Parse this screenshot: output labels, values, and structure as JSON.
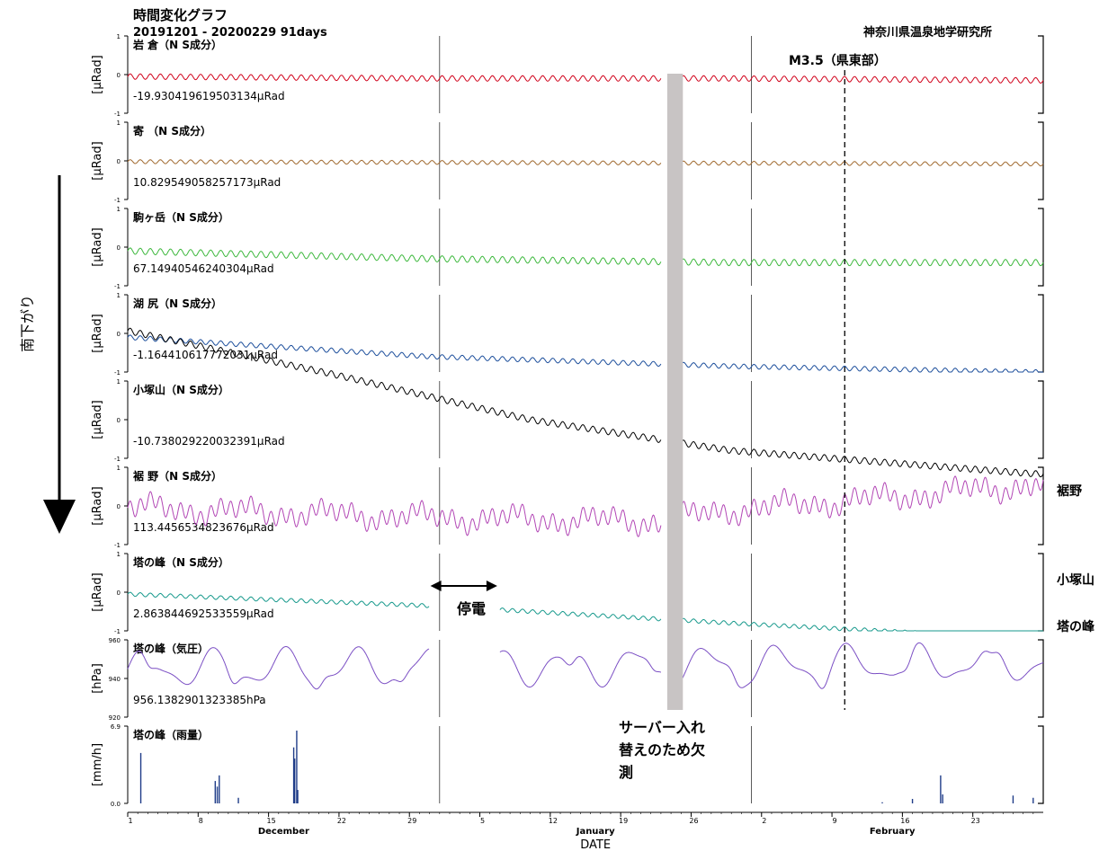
{
  "header": {
    "title": "時間変化グラフ",
    "range": "20191201 - 20200229 91days",
    "institute": "神奈川県温泉地学研究所"
  },
  "chart_data": {
    "type": "line",
    "title": "時間変化グラフ",
    "subtitle": "20191201 - 20200229 91days",
    "xlabel": "DATE",
    "x_range": [
      "2019-12-01",
      "2020-02-29"
    ],
    "month_labels": [
      "December",
      "January",
      "February"
    ],
    "x_ticks": {
      "2019-12": [
        "1",
        "8",
        "15",
        "22",
        "29"
      ],
      "2020-01": [
        "5",
        "12",
        "19",
        "26"
      ],
      "2020-02": [
        "2",
        "9",
        "16",
        "23"
      ]
    },
    "panels": [
      {
        "name": "岩 倉（N S成分）",
        "ylabel": "[μRad]",
        "ylim": [
          -1,
          1
        ],
        "yticks": [
          "1",
          "0",
          "-1"
        ],
        "color": "#d0021b",
        "offset_label": "-19.930419619503134μRad",
        "trend": [
          [
            0,
            -0.05
          ],
          [
            30,
            -0.1
          ],
          [
            60,
            -0.1
          ],
          [
            90,
            -0.15
          ]
        ],
        "amp": 0.07,
        "gaps": [
          [
            53,
            55
          ]
        ]
      },
      {
        "name": "寄 （N S成分）",
        "ylabel": "[μRad]",
        "ylim": [
          -1,
          1
        ],
        "yticks": [
          "1",
          "0",
          "-1"
        ],
        "color": "#a0692e",
        "offset_label": "10.829549058257173μRad",
        "trend": [
          [
            0,
            -0.02
          ],
          [
            90,
            -0.08
          ]
        ],
        "amp": 0.05,
        "gaps": [
          [
            53,
            55
          ]
        ]
      },
      {
        "name": "駒ヶ岳（N S成分）",
        "ylabel": "[μRad]",
        "ylim": [
          -1,
          1
        ],
        "yticks": [
          "1",
          "0",
          "-1"
        ],
        "color": "#3db83d",
        "offset_label": "67.14940546240304μRad",
        "trend": [
          [
            0,
            -0.1
          ],
          [
            30,
            -0.3
          ],
          [
            60,
            -0.4
          ],
          [
            90,
            -0.4
          ]
        ],
        "amp": 0.08,
        "gaps": [
          [
            53,
            55
          ]
        ]
      },
      {
        "name": "湖 尻（N S成分）",
        "ylabel": "[μRad]",
        "ylim": [
          -1,
          1
        ],
        "yticks": [
          "1",
          "0",
          "-1"
        ],
        "color": "#1d4f9c",
        "offset_label": "-1.164410617772031μRad",
        "trend": [
          [
            0,
            -0.1
          ],
          [
            30,
            -0.6
          ],
          [
            60,
            -0.85
          ],
          [
            90,
            -1.0
          ]
        ],
        "amp": 0.06,
        "gaps": [
          [
            53,
            55
          ]
        ]
      },
      {
        "name": "小塚山（N S成分）",
        "ylabel": "[μRad]",
        "ylim": [
          -1,
          1
        ],
        "yticks": [
          "1",
          "0",
          "-1"
        ],
        "color": "#000000",
        "offset_label": "-10.738029220032391μRad",
        "trend": [
          [
            0,
            0.0
          ],
          [
            90,
            -1.0
          ]
        ],
        "amp": 0.0,
        "gaps": []
      },
      {
        "name": "裾 野（N S成分）",
        "ylabel": "[μRad]",
        "ylim": [
          -1,
          1
        ],
        "yticks": [
          "1",
          "0",
          "-1"
        ],
        "color": "#b246b5",
        "offset_label": "113.4456534823676μRad",
        "trend": [
          [
            0,
            -0.05
          ],
          [
            30,
            -0.3
          ],
          [
            53,
            -0.4
          ],
          [
            60,
            -0.1
          ],
          [
            75,
            0.2
          ],
          [
            90,
            0.55
          ]
        ],
        "amp": 0.2,
        "gaps": [
          [
            53,
            55
          ]
        ],
        "right_label": "裾野"
      },
      {
        "name": "塔の峰（N S成分）",
        "ylabel": "[μRad]",
        "ylim": [
          -1,
          1
        ],
        "yticks": [
          "1",
          "0",
          "-1"
        ],
        "color": "#17998c",
        "offset_label": "2.863844692533559μRad",
        "trend": [
          [
            0,
            -0.05
          ],
          [
            30,
            -0.35
          ],
          [
            60,
            -0.8
          ],
          [
            90,
            -1.2
          ]
        ],
        "amp": 0.05,
        "gaps": [
          [
            30,
            37
          ],
          [
            53,
            55
          ]
        ],
        "right_label": "塔の峰"
      },
      {
        "name": "塔の峰（気圧）",
        "ylabel": "[hPa]",
        "ylim": [
          920,
          960
        ],
        "yticks": [
          "960",
          "940",
          "920"
        ],
        "color": "#7b4fc4",
        "offset_label": "956.1382901323385hPa",
        "trend": [
          [
            0,
            945
          ],
          [
            90,
            948
          ]
        ],
        "amp": 8,
        "gaps": [
          [
            30,
            37
          ],
          [
            53,
            55
          ]
        ]
      },
      {
        "name": "塔の峰（雨量）",
        "ylabel": "[mm/h]",
        "ylim": [
          0,
          6.9
        ],
        "yticks": [
          "6.9",
          "0.0"
        ],
        "color": "#1f3c88",
        "offset_label": "",
        "bars": [
          [
            1.3,
            4.5
          ],
          [
            8.7,
            2.0
          ],
          [
            8.9,
            1.5
          ],
          [
            9.1,
            2.5
          ],
          [
            11,
            0.5
          ],
          [
            16.5,
            5.0
          ],
          [
            16.6,
            4.0
          ],
          [
            16.8,
            6.5
          ],
          [
            16.9,
            1.2
          ],
          [
            75,
            0.1
          ],
          [
            78,
            0.4
          ],
          [
            80.8,
            2.5
          ],
          [
            81,
            0.8
          ],
          [
            88,
            0.7
          ],
          [
            90,
            0.5
          ]
        ]
      }
    ],
    "kozukayama_overlay": {
      "source_panel": "小塚山（N S成分）",
      "label": "小塚山",
      "trend": [
        [
          0,
          2.3
        ],
        [
          20,
          1.2
        ],
        [
          40,
          0.0
        ],
        [
          60,
          -0.8
        ],
        [
          90,
          -1.4
        ]
      ]
    },
    "annotations": {
      "event_label": "M3.5（県東部）",
      "event_day": 71,
      "outage_label": "停電",
      "outage_range": [
        30,
        37
      ],
      "server_label_lines": [
        "サーバー入れ",
        "替えのため欠",
        "測"
      ],
      "server_range": [
        53,
        55
      ],
      "trend_arrow_label": "南下がり"
    },
    "grid": false
  }
}
